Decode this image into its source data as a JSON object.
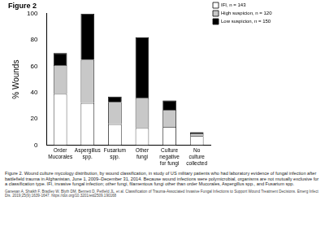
{
  "chart_data": {
    "type": "bar",
    "title": "Figure 2",
    "y_label": "% Wounds",
    "categories": [
      "Order Mucorales",
      "Aspergillus spp.",
      "Fusarium spp.",
      "Other fungi",
      "Culture negative for fungi",
      "No culture collected"
    ],
    "series": [
      {
        "name": "IFI, n = 143",
        "color": "#ffffff",
        "values": [
          39,
          32,
          16,
          13,
          14,
          7
        ]
      },
      {
        "name": "High suspicion, n = 120",
        "color": "#c8c8c8",
        "values": [
          22,
          33,
          17,
          23,
          13,
          2
        ]
      },
      {
        "name": "Low suspicion, n = 150",
        "color": "#000000",
        "values": [
          9,
          35,
          4,
          46,
          7,
          1
        ]
      }
    ],
    "stacked": true,
    "ylim": [
      0,
      100
    ],
    "yticks": [
      0,
      20,
      40,
      60,
      80,
      100
    ],
    "grid": false,
    "legend": "upper right",
    "caption": "Figure 2. Wound culture mycology distribution, by wound classification, in study of US military patients who had laboratory evidence of fungal infection after battlefield trauma in Afghanistan, June 1, 2009–December 31, 2014. Because wound infections were polymicrobial, organisms are not mutually exclusive for a classification type. IFI, invasive fungal infection; other fungi, filamentous fungi other than order Mucorales, Aspergillus spp., and Fusarium spp.",
    "source": "Ganesan A, Shaikh F, Bradley W, Blyth DM, Bennett D, Petfield JL, et al. Classification of Trauma-Associated Invasive Fungal Infections to Support Wound Treatment Decisions. Emerg Infect Dis. 2019;25(9):1639-1647. https://doi.org/10.3201/eid2509.190168"
  }
}
